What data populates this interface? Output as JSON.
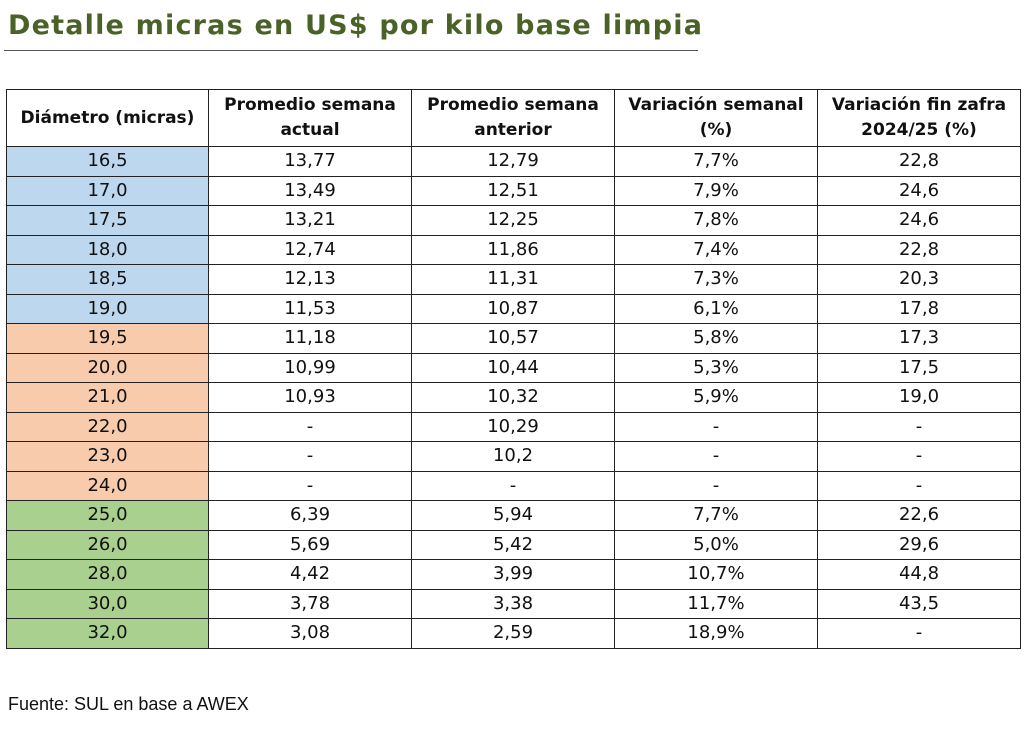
{
  "title": "Detalle micras en US$ por kilo base limpia",
  "headers": [
    "Diámetro (micras)",
    "Promedio semana actual",
    "Promedio semana anterior",
    "Variación semanal (%)",
    "Variación fin zafra 2024/25 (%)"
  ],
  "rows": [
    {
      "group": "blue",
      "cells": [
        "16,5",
        "13,77",
        "12,79",
        "7,7%",
        "22,8"
      ]
    },
    {
      "group": "blue",
      "cells": [
        "17,0",
        "13,49",
        "12,51",
        "7,9%",
        "24,6"
      ]
    },
    {
      "group": "blue",
      "cells": [
        "17,5",
        "13,21",
        "12,25",
        "7,8%",
        "24,6"
      ]
    },
    {
      "group": "blue",
      "cells": [
        "18,0",
        "12,74",
        "11,86",
        "7,4%",
        "22,8"
      ]
    },
    {
      "group": "blue",
      "cells": [
        "18,5",
        "12,13",
        "11,31",
        "7,3%",
        "20,3"
      ]
    },
    {
      "group": "blue",
      "cells": [
        "19,0",
        "11,53",
        "10,87",
        "6,1%",
        "17,8"
      ]
    },
    {
      "group": "orange",
      "cells": [
        "19,5",
        "11,18",
        "10,57",
        "5,8%",
        "17,3"
      ]
    },
    {
      "group": "orange",
      "cells": [
        "20,0",
        "10,99",
        "10,44",
        "5,3%",
        "17,5"
      ]
    },
    {
      "group": "orange",
      "cells": [
        "21,0",
        "10,93",
        "10,32",
        "5,9%",
        "19,0"
      ]
    },
    {
      "group": "orange",
      "cells": [
        "22,0",
        "-",
        "10,29",
        "-",
        "-"
      ]
    },
    {
      "group": "orange",
      "cells": [
        "23,0",
        "-",
        "10,2",
        "-",
        "-"
      ]
    },
    {
      "group": "orange",
      "cells": [
        "24,0",
        "-",
        "-",
        "-",
        "-"
      ]
    },
    {
      "group": "green",
      "cells": [
        "25,0",
        "6,39",
        "5,94",
        "7,7%",
        "22,6"
      ]
    },
    {
      "group": "green",
      "cells": [
        "26,0",
        "5,69",
        "5,42",
        "5,0%",
        "29,6"
      ]
    },
    {
      "group": "green",
      "cells": [
        "28,0",
        "4,42",
        "3,99",
        "10,7%",
        "44,8"
      ]
    },
    {
      "group": "green",
      "cells": [
        "30,0",
        "3,78",
        "3,38",
        "11,7%",
        "43,5"
      ]
    },
    {
      "group": "green",
      "cells": [
        "32,0",
        "3,08",
        "2,59",
        "18,9%",
        "-"
      ]
    }
  ],
  "source": "Fuente: SUL en base a AWEX",
  "colors": {
    "title": "#4a6127",
    "blue": "#bdd7ee",
    "orange": "#f8cbad",
    "green": "#a9d08e"
  }
}
